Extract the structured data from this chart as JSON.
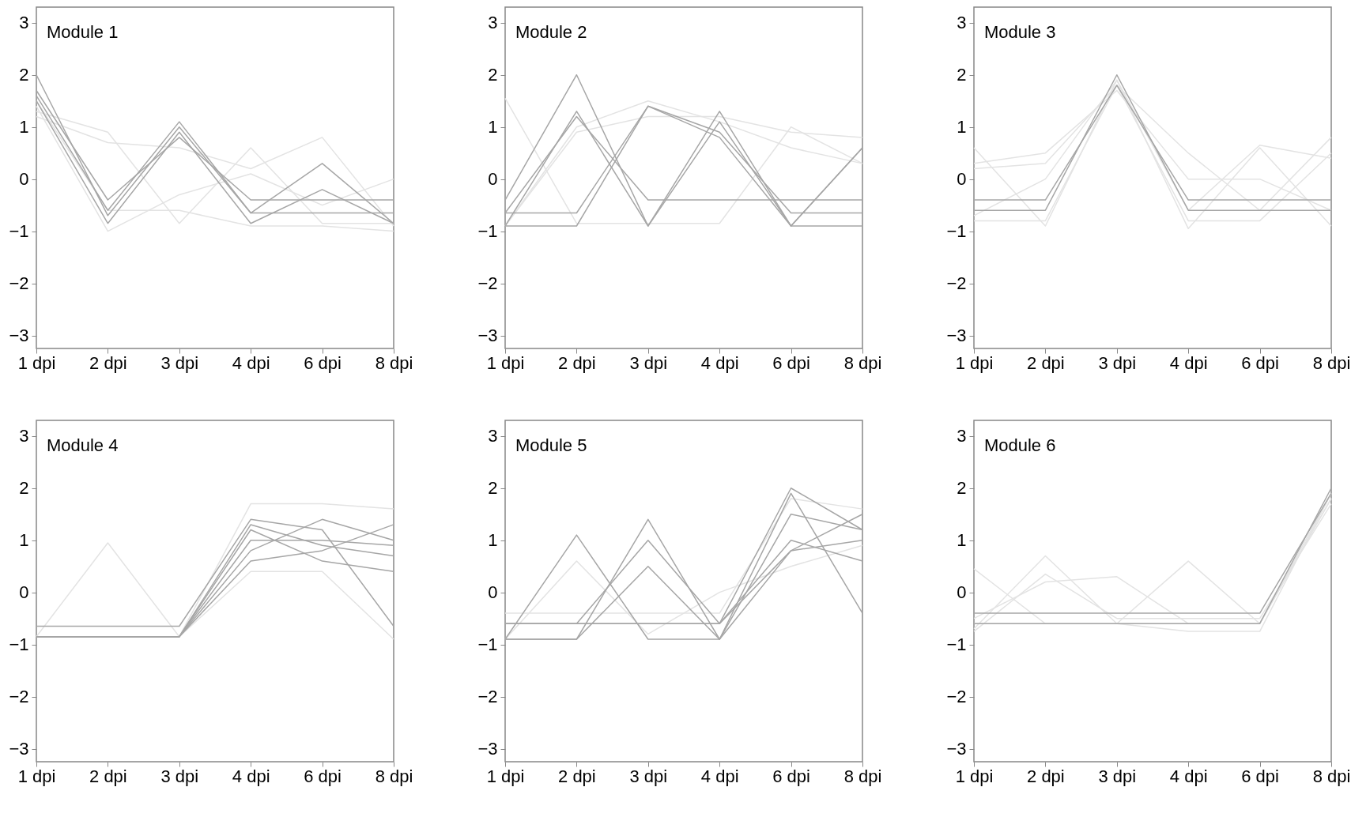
{
  "chart_data": [
    {
      "type": "line",
      "title": "Module 1",
      "categories": [
        "1 dpi",
        "2 dpi",
        "3 dpi",
        "4 dpi",
        "6 dpi",
        "8 dpi"
      ],
      "ylim": [
        -3.25,
        3.3
      ],
      "yticks": [
        -3,
        -2,
        -1,
        0,
        1,
        2,
        3
      ],
      "series": [
        {
          "color": "#e3e3e3",
          "values": [
            1.3,
            0.9,
            -0.85,
            0.6,
            -0.85,
            -0.85
          ]
        },
        {
          "color": "#e3e3e3",
          "values": [
            1.2,
            0.7,
            0.6,
            0.2,
            0.8,
            -0.9
          ]
        },
        {
          "color": "#e3e3e3",
          "values": [
            1.4,
            -1.0,
            -0.3,
            0.1,
            -0.5,
            0.0
          ]
        },
        {
          "color": "#e3e3e3",
          "values": [
            1.5,
            -0.6,
            -0.6,
            -0.9,
            -0.9,
            -1.0
          ]
        },
        {
          "color": "#a6a6a6",
          "values": [
            2.0,
            -0.7,
            1.0,
            -0.65,
            -0.65,
            -0.65
          ]
        },
        {
          "color": "#a6a6a6",
          "values": [
            1.6,
            -0.6,
            1.1,
            -0.65,
            0.3,
            -0.85
          ]
        },
        {
          "color": "#a6a6a6",
          "values": [
            1.5,
            -0.85,
            0.9,
            -0.85,
            -0.2,
            -0.85
          ]
        },
        {
          "color": "#a6a6a6",
          "values": [
            1.7,
            -0.4,
            0.8,
            -0.4,
            -0.4,
            -0.4
          ]
        }
      ]
    },
    {
      "type": "line",
      "title": "Module 2",
      "categories": [
        "1 dpi",
        "2 dpi",
        "3 dpi",
        "4 dpi",
        "6 dpi",
        "8 dpi"
      ],
      "ylim": [
        -3.25,
        3.3
      ],
      "yticks": [
        -3,
        -2,
        -1,
        0,
        1,
        2,
        3
      ],
      "series": [
        {
          "color": "#e3e3e3",
          "values": [
            1.55,
            -0.85,
            -0.85,
            -0.85,
            1.0,
            0.3
          ]
        },
        {
          "color": "#e3e3e3",
          "values": [
            -0.9,
            1.0,
            1.5,
            1.1,
            0.6,
            0.3
          ]
        },
        {
          "color": "#e3e3e3",
          "values": [
            -0.9,
            0.9,
            1.2,
            1.2,
            0.9,
            0.8
          ]
        },
        {
          "color": "#a6a6a6",
          "values": [
            -0.9,
            1.3,
            -0.9,
            1.1,
            -0.9,
            0.6
          ]
        },
        {
          "color": "#a6a6a6",
          "values": [
            -0.9,
            -0.9,
            1.4,
            0.8,
            -0.9,
            0.6
          ]
        },
        {
          "color": "#a6a6a6",
          "values": [
            -0.65,
            1.2,
            -0.4,
            -0.4,
            -0.4,
            -0.4
          ]
        },
        {
          "color": "#a6a6a6",
          "values": [
            -0.4,
            2.0,
            -0.9,
            1.3,
            -0.9,
            -0.9
          ]
        },
        {
          "color": "#a6a6a6",
          "values": [
            -0.65,
            -0.65,
            1.4,
            0.9,
            -0.65,
            -0.65
          ]
        }
      ]
    },
    {
      "type": "line",
      "title": "Module 3",
      "categories": [
        "1 dpi",
        "2 dpi",
        "3 dpi",
        "4 dpi",
        "6 dpi",
        "8 dpi"
      ],
      "ylim": [
        -3.25,
        3.3
      ],
      "yticks": [
        -3,
        -2,
        -1,
        0,
        1,
        2,
        3
      ],
      "series": [
        {
          "color": "#e3e3e3",
          "values": [
            0.6,
            -0.9,
            1.9,
            -0.95,
            0.6,
            -0.9
          ]
        },
        {
          "color": "#e3e3e3",
          "values": [
            0.2,
            0.3,
            1.8,
            0.5,
            -0.6,
            0.8
          ]
        },
        {
          "color": "#e3e3e3",
          "values": [
            0.3,
            0.5,
            1.7,
            0.0,
            0.0,
            -0.6
          ]
        },
        {
          "color": "#e3e3e3",
          "values": [
            -0.7,
            0.0,
            1.9,
            -0.6,
            0.65,
            0.4
          ]
        },
        {
          "color": "#e3e3e3",
          "values": [
            -0.8,
            -0.8,
            1.8,
            -0.8,
            -0.8,
            0.5
          ]
        },
        {
          "color": "#a6a6a6",
          "values": [
            -0.6,
            -0.6,
            2.0,
            -0.6,
            -0.6,
            -0.6
          ]
        },
        {
          "color": "#a6a6a6",
          "values": [
            -0.4,
            -0.4,
            1.8,
            -0.4,
            -0.4,
            -0.4
          ]
        }
      ]
    },
    {
      "type": "line",
      "title": "Module 4",
      "categories": [
        "1 dpi",
        "2 dpi",
        "3 dpi",
        "4 dpi",
        "6 dpi",
        "8 dpi"
      ],
      "ylim": [
        -3.25,
        3.3
      ],
      "yticks": [
        -3,
        -2,
        -1,
        0,
        1,
        2,
        3
      ],
      "series": [
        {
          "color": "#e3e3e3",
          "values": [
            -0.85,
            0.95,
            -0.85,
            1.7,
            1.7,
            1.6
          ]
        },
        {
          "color": "#e3e3e3",
          "values": [
            -0.85,
            -0.85,
            -0.85,
            0.4,
            0.4,
            -0.9
          ]
        },
        {
          "color": "#a6a6a6",
          "values": [
            -0.85,
            -0.85,
            -0.85,
            1.0,
            1.0,
            0.9
          ]
        },
        {
          "color": "#a6a6a6",
          "values": [
            -0.65,
            -0.65,
            -0.65,
            1.4,
            1.2,
            -0.65
          ]
        },
        {
          "color": "#a6a6a6",
          "values": [
            -0.85,
            -0.85,
            -0.85,
            0.6,
            0.8,
            1.3
          ]
        },
        {
          "color": "#a6a6a6",
          "values": [
            -0.85,
            -0.85,
            -0.85,
            1.2,
            0.6,
            0.4
          ]
        },
        {
          "color": "#a6a6a6",
          "values": [
            -0.85,
            -0.85,
            -0.85,
            0.8,
            1.4,
            1.0
          ]
        },
        {
          "color": "#a6a6a6",
          "values": [
            -0.85,
            -0.85,
            -0.85,
            1.3,
            0.9,
            0.7
          ]
        }
      ]
    },
    {
      "type": "line",
      "title": "Module 5",
      "categories": [
        "1 dpi",
        "2 dpi",
        "3 dpi",
        "4 dpi",
        "6 dpi",
        "8 dpi"
      ],
      "ylim": [
        -3.25,
        3.3
      ],
      "yticks": [
        -3,
        -2,
        -1,
        0,
        1,
        2,
        3
      ],
      "series": [
        {
          "color": "#e3e3e3",
          "values": [
            -0.4,
            -0.4,
            -0.4,
            -0.4,
            1.8,
            1.6
          ]
        },
        {
          "color": "#e3e3e3",
          "values": [
            -0.9,
            0.6,
            -0.8,
            0.0,
            0.5,
            0.9
          ]
        },
        {
          "color": "#a6a6a6",
          "values": [
            -0.6,
            -0.6,
            -0.6,
            -0.6,
            2.0,
            1.2
          ]
        },
        {
          "color": "#a6a6a6",
          "values": [
            -0.9,
            1.1,
            -0.9,
            -0.9,
            1.9,
            -0.4
          ]
        },
        {
          "color": "#a6a6a6",
          "values": [
            -0.9,
            -0.9,
            1.4,
            -0.9,
            1.5,
            1.2
          ]
        },
        {
          "color": "#a6a6a6",
          "values": [
            -0.6,
            -0.6,
            1.0,
            -0.6,
            0.8,
            1.0
          ]
        },
        {
          "color": "#a6a6a6",
          "values": [
            -0.6,
            -0.6,
            -0.6,
            -0.6,
            1.0,
            0.6
          ]
        },
        {
          "color": "#a6a6a6",
          "values": [
            -0.9,
            -0.9,
            0.5,
            -0.9,
            0.8,
            1.5
          ]
        }
      ]
    },
    {
      "type": "line",
      "title": "Module 6",
      "categories": [
        "1 dpi",
        "2 dpi",
        "3 dpi",
        "4 dpi",
        "6 dpi",
        "8 dpi"
      ],
      "ylim": [
        -3.25,
        3.3
      ],
      "yticks": [
        -3,
        -2,
        -1,
        0,
        1,
        2,
        3
      ],
      "series": [
        {
          "color": "#e3e3e3",
          "values": [
            0.45,
            -0.6,
            -0.6,
            -0.6,
            -0.6,
            1.8
          ]
        },
        {
          "color": "#e3e3e3",
          "values": [
            -0.7,
            0.7,
            -0.6,
            -0.75,
            -0.75,
            1.9
          ]
        },
        {
          "color": "#e3e3e3",
          "values": [
            -0.5,
            0.2,
            0.3,
            -0.6,
            -0.6,
            1.8
          ]
        },
        {
          "color": "#e3e3e3",
          "values": [
            -0.6,
            -0.6,
            -0.6,
            0.6,
            -0.6,
            1.9
          ]
        },
        {
          "color": "#e3e3e3",
          "values": [
            -0.75,
            0.35,
            -0.5,
            -0.5,
            -0.5,
            1.7
          ]
        },
        {
          "color": "#a6a6a6",
          "values": [
            -0.6,
            -0.6,
            -0.6,
            -0.6,
            -0.6,
            2.0
          ]
        },
        {
          "color": "#a6a6a6",
          "values": [
            -0.4,
            -0.4,
            -0.4,
            -0.4,
            -0.4,
            1.9
          ]
        }
      ]
    }
  ]
}
